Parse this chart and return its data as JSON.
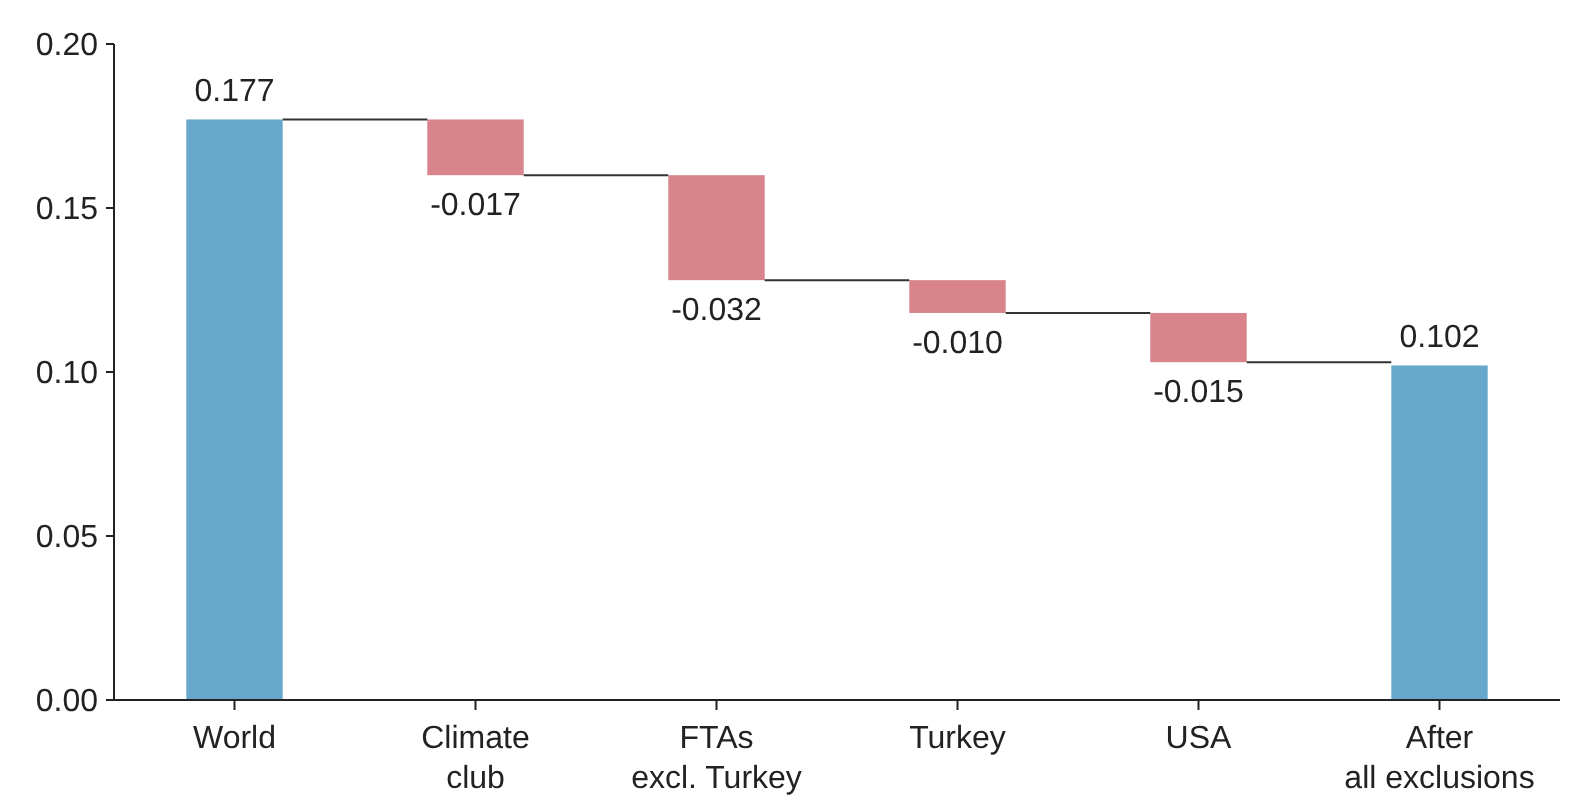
{
  "chart_data": {
    "type": "bar",
    "categories": [
      "World",
      "Climate\nclub",
      "FTAs\nexcl. Turkey",
      "Turkey",
      "USA",
      "After\nall exclusions"
    ],
    "values": [
      0.177,
      -0.017,
      -0.032,
      -0.01,
      -0.015,
      0.102
    ],
    "base": [
      0,
      0.177,
      0.16,
      0.128,
      0.118,
      0
    ],
    "colors": [
      "#68a7cc",
      "#d8848a",
      "#d8848a",
      "#d8848a",
      "#d8848a",
      "#68a7cc"
    ],
    "ylim": [
      0,
      0.2
    ],
    "yticks": [
      {
        "value": 0,
        "label": "0.00"
      },
      {
        "value": 0.05,
        "label": "0.05"
      },
      {
        "value": 0.1,
        "label": "0.10"
      },
      {
        "value": 0.15,
        "label": "0.15"
      },
      {
        "value": 0.2,
        "label": "0.20"
      }
    ],
    "value_labels": [
      "0.177",
      "-0.017",
      "-0.032",
      "-0.010",
      "-0.015",
      "0.102"
    ],
    "grid": false
  }
}
